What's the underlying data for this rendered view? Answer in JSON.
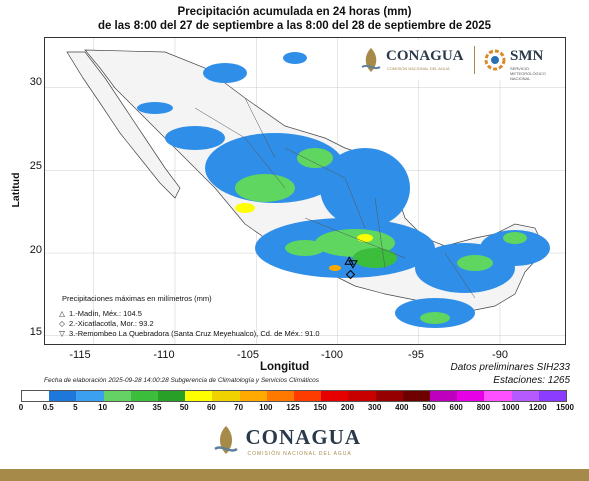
{
  "title_line1": "Precipitación acumulada en 24 horas (mm)",
  "title_line2": "de las 8:00 del 27 de septiembre a las 8:00 del 28 de septiembre de 2025",
  "axes": {
    "ylabel": "Latitud",
    "xlabel": "Longitud",
    "yticks": [
      "30",
      "25",
      "20",
      "15"
    ],
    "xticks": [
      "-115",
      "-110",
      "-105",
      "-100",
      "-95",
      "-90"
    ]
  },
  "legend": {
    "title": "Precipitaciones máximas en milímetros (mm)",
    "items": [
      {
        "symbol": "△",
        "text": "1.-Madín, Méx.: 104.5"
      },
      {
        "symbol": "◇",
        "text": "2.-Xicatlacotla, Mor.: 93.2"
      },
      {
        "symbol": "▽",
        "text": "3.-Remombeo La Quebradora (Santa Cruz Meyehualco), Cd. de Méx.: 91.0"
      }
    ]
  },
  "footer": {
    "fecha": "Fecha de elaboración 2025-09-28 14:00:28 Subgerencia de Climatología y Servicios Climáticos",
    "datos": "Datos preliminares SIH233",
    "estaciones": "Estaciones:  1265"
  },
  "colorbar": {
    "labels": [
      "0",
      "0.5",
      "5",
      "10",
      "20",
      "35",
      "50",
      "60",
      "70",
      "100",
      "125",
      "150",
      "200",
      "300",
      "400",
      "500",
      "600",
      "800",
      "1000",
      "1200",
      "1500"
    ],
    "colors": [
      "#ffffff",
      "#1e78dc",
      "#3ca0f0",
      "#64d264",
      "#3cbe3c",
      "#28a028",
      "#ffff00",
      "#f0d200",
      "#ffaa00",
      "#ff7800",
      "#ff3c00",
      "#e60000",
      "#c80000",
      "#960000",
      "#6e0000",
      "#be00be",
      "#e600e6",
      "#ff50ff",
      "#b45aff",
      "#8c3cff"
    ]
  },
  "logos": {
    "conagua": "CONAGUA",
    "conagua_sub": "COMISIÓN NACIONAL DEL AGUA",
    "smn": "SMN",
    "smn_sub": "SERVICIO METEOROLÓGICO NACIONAL"
  },
  "map": {
    "stations": [
      {
        "id": "1",
        "symbol": "triangle-up",
        "lon": -99.28,
        "lat": 19.5
      },
      {
        "id": "2",
        "symbol": "diamond",
        "lon": -99.2,
        "lat": 18.7
      },
      {
        "id": "3",
        "symbol": "triangle-down",
        "lon": -99.05,
        "lat": 19.35
      }
    ],
    "lon_range": [
      -118,
      -86
    ],
    "lat_range": [
      14.5,
      33
    ]
  }
}
